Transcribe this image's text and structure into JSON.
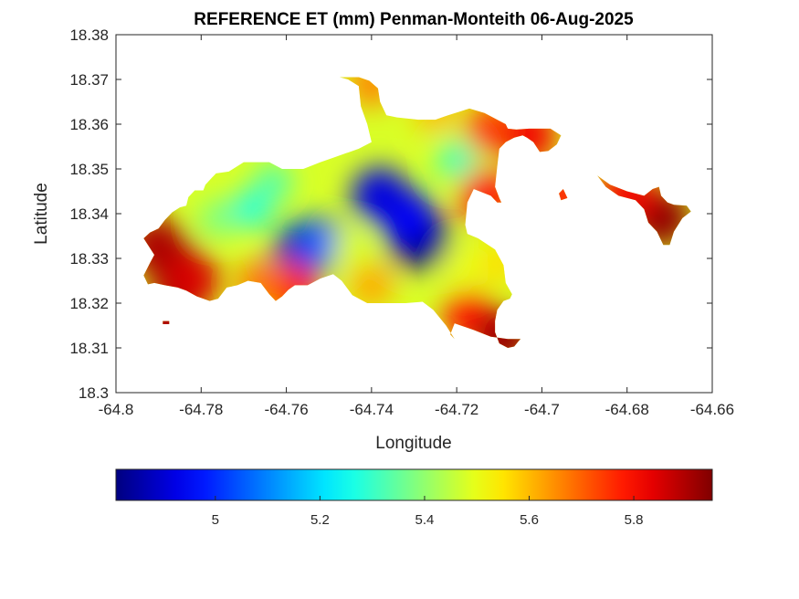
{
  "chart_data": {
    "type": "heatmap",
    "title": "REFERENCE ET (mm) Penman-Monteith 06-Aug-2025",
    "xlabel": "Longitude",
    "ylabel": "Latitude",
    "xlim": [
      -64.8,
      -64.66
    ],
    "ylim": [
      18.3,
      18.38
    ],
    "x_ticks": [
      -64.8,
      -64.78,
      -64.76,
      -64.74,
      -64.72,
      -64.7,
      -64.68,
      -64.66
    ],
    "x_tick_labels": [
      "-64.8",
      "-64.78",
      "-64.76",
      "-64.74",
      "-64.72",
      "-64.7",
      "-64.68",
      "-64.66"
    ],
    "y_ticks": [
      18.3,
      18.31,
      18.32,
      18.33,
      18.34,
      18.35,
      18.36,
      18.37,
      18.38
    ],
    "y_tick_labels": [
      "18.3",
      "18.31",
      "18.32",
      "18.33",
      "18.34",
      "18.35",
      "18.36",
      "18.37",
      "18.38"
    ],
    "grid": false,
    "colormap": "jet",
    "colorbar": {
      "orientation": "horizontal",
      "placement": "bottom",
      "range": [
        4.81,
        5.95
      ],
      "ticks": [
        5.0,
        5.2,
        5.4,
        5.6,
        5.8
      ],
      "tick_labels": [
        "5",
        "5.2",
        "5.4",
        "5.6",
        "5.8"
      ]
    },
    "outline": [
      [
        -64.7935,
        18.3345
      ],
      [
        -64.792,
        18.3358
      ],
      [
        -64.79,
        18.3367
      ],
      [
        -64.7885,
        18.3386
      ],
      [
        -64.7868,
        18.3403
      ],
      [
        -64.785,
        18.3414
      ],
      [
        -64.7835,
        18.3418
      ],
      [
        -64.783,
        18.3437
      ],
      [
        -64.7815,
        18.3452
      ],
      [
        -64.7795,
        18.3452
      ],
      [
        -64.779,
        18.3465
      ],
      [
        -64.7775,
        18.348
      ],
      [
        -64.7765,
        18.349
      ],
      [
        -64.7735,
        18.3494
      ],
      [
        -64.77,
        18.3515
      ],
      [
        -64.767,
        18.3515
      ],
      [
        -64.764,
        18.3515
      ],
      [
        -64.761,
        18.35
      ],
      [
        -64.756,
        18.35
      ],
      [
        -64.752,
        18.3515
      ],
      [
        -64.749,
        18.3525
      ],
      [
        -64.746,
        18.3535
      ],
      [
        -64.743,
        18.3545
      ],
      [
        -64.74,
        18.356
      ],
      [
        -64.741,
        18.36
      ],
      [
        -64.7425,
        18.364
      ],
      [
        -64.743,
        18.3685
      ],
      [
        -64.7455,
        18.37
      ],
      [
        -64.7475,
        18.3705
      ],
      [
        -64.743,
        18.3705
      ],
      [
        -64.7405,
        18.3697
      ],
      [
        -64.7385,
        18.368
      ],
      [
        -64.738,
        18.365
      ],
      [
        -64.7365,
        18.362
      ],
      [
        -64.734,
        18.3615
      ],
      [
        -64.729,
        18.361
      ],
      [
        -64.725,
        18.361
      ],
      [
        -64.722,
        18.362
      ],
      [
        -64.717,
        18.3635
      ],
      [
        -64.7135,
        18.3625
      ],
      [
        -64.7105,
        18.361
      ],
      [
        -64.7085,
        18.36
      ],
      [
        -64.708,
        18.359
      ],
      [
        -64.706,
        18.3588
      ],
      [
        -64.703,
        18.359
      ],
      [
        -64.701,
        18.359
      ],
      [
        -64.698,
        18.359
      ],
      [
        -64.6955,
        18.3575
      ],
      [
        -64.6965,
        18.3555
      ],
      [
        -64.6985,
        18.354
      ],
      [
        -64.7005,
        18.3538
      ],
      [
        -64.702,
        18.356
      ],
      [
        -64.7035,
        18.357
      ],
      [
        -64.7045,
        18.3575
      ],
      [
        -64.7065,
        18.357
      ],
      [
        -64.7085,
        18.356
      ],
      [
        -64.71,
        18.3545
      ],
      [
        -64.7105,
        18.3505
      ],
      [
        -64.711,
        18.346
      ],
      [
        -64.71,
        18.3435
      ],
      [
        -64.7095,
        18.3425
      ],
      [
        -64.7105,
        18.3425
      ],
      [
        -64.712,
        18.344
      ],
      [
        -64.716,
        18.3455
      ],
      [
        -64.7175,
        18.3425
      ],
      [
        -64.718,
        18.3375
      ],
      [
        -64.7175,
        18.3355
      ],
      [
        -64.715,
        18.3345
      ],
      [
        -64.711,
        18.332
      ],
      [
        -64.709,
        18.3285
      ],
      [
        -64.7085,
        18.3245
      ],
      [
        -64.707,
        18.322
      ],
      [
        -64.7075,
        18.321
      ],
      [
        -64.709,
        18.3205
      ],
      [
        -64.7105,
        18.3185
      ],
      [
        -64.711,
        18.316
      ],
      [
        -64.711,
        18.3135
      ],
      [
        -64.71,
        18.311
      ],
      [
        -64.708,
        18.31
      ],
      [
        -64.7065,
        18.3103
      ],
      [
        -64.7055,
        18.3115
      ],
      [
        -64.705,
        18.312
      ],
      [
        -64.708,
        18.312
      ],
      [
        -64.712,
        18.3125
      ],
      [
        -64.716,
        18.314
      ],
      [
        -64.7205,
        18.3155
      ],
      [
        -64.7215,
        18.313
      ],
      [
        -64.7205,
        18.312
      ],
      [
        -64.7225,
        18.315
      ],
      [
        -64.7255,
        18.3185
      ],
      [
        -64.728,
        18.3203
      ],
      [
        -64.732,
        18.32
      ],
      [
        -64.7375,
        18.32
      ],
      [
        -64.741,
        18.32
      ],
      [
        -64.7445,
        18.3218
      ],
      [
        -64.747,
        18.325
      ],
      [
        -64.749,
        18.3265
      ],
      [
        -64.752,
        18.3255
      ],
      [
        -64.755,
        18.324
      ],
      [
        -64.758,
        18.324
      ],
      [
        -64.7595,
        18.323
      ],
      [
        -64.761,
        18.3215
      ],
      [
        -64.7625,
        18.3205
      ],
      [
        -64.764,
        18.322
      ],
      [
        -64.766,
        18.3245
      ],
      [
        -64.769,
        18.325
      ],
      [
        -64.7715,
        18.324
      ],
      [
        -64.774,
        18.3235
      ],
      [
        -64.776,
        18.321
      ],
      [
        -64.778,
        18.3205
      ],
      [
        -64.781,
        18.3215
      ],
      [
        -64.7835,
        18.3228
      ],
      [
        -64.7855,
        18.3235
      ],
      [
        -64.7885,
        18.324
      ],
      [
        -64.791,
        18.3245
      ],
      [
        -64.7925,
        18.3242
      ],
      [
        -64.7935,
        18.3262
      ],
      [
        -64.792,
        18.329
      ],
      [
        -64.791,
        18.3308
      ],
      [
        -64.7925,
        18.333
      ]
    ],
    "islands": [
      [
        [
          -64.695,
          18.3455
        ],
        [
          -64.694,
          18.3435
        ],
        [
          -64.6955,
          18.343
        ],
        [
          -64.696,
          18.3445
        ]
      ],
      [
        [
          -64.687,
          18.3485
        ],
        [
          -64.684,
          18.3465
        ],
        [
          -64.68,
          18.345
        ],
        [
          -64.676,
          18.344
        ],
        [
          -64.674,
          18.3455
        ],
        [
          -64.6725,
          18.346
        ],
        [
          -64.672,
          18.344
        ],
        [
          -64.6705,
          18.3425
        ],
        [
          -64.669,
          18.342
        ],
        [
          -64.666,
          18.3418
        ],
        [
          -64.665,
          18.3405
        ],
        [
          -64.667,
          18.339
        ],
        [
          -64.669,
          18.336
        ],
        [
          -64.67,
          18.333
        ],
        [
          -64.6715,
          18.333
        ],
        [
          -64.673,
          18.336
        ],
        [
          -64.675,
          18.338
        ],
        [
          -64.676,
          18.341
        ],
        [
          -64.678,
          18.343
        ],
        [
          -64.682,
          18.344
        ],
        [
          -64.685,
          18.346
        ]
      ],
      [
        [
          -64.789,
          18.316
        ],
        [
          -64.7875,
          18.316
        ],
        [
          -64.7875,
          18.3153
        ],
        [
          -64.789,
          18.3153
        ]
      ]
    ],
    "field_blobs": [
      {
        "lon": -64.729,
        "lat": 18.3345,
        "value": 4.81
      },
      {
        "lon": -64.732,
        "lat": 18.3395,
        "value": 4.95
      },
      {
        "lon": -64.738,
        "lat": 18.344,
        "value": 4.92
      },
      {
        "lon": -64.756,
        "lat": 18.3318,
        "value": 4.88
      },
      {
        "lon": -64.752,
        "lat": 18.3335,
        "value": 5.05
      },
      {
        "lon": -64.72,
        "lat": 18.352,
        "value": 5.3
      },
      {
        "lon": -64.768,
        "lat": 18.341,
        "value": 5.27
      },
      {
        "lon": -64.763,
        "lat": 18.347,
        "value": 5.32
      },
      {
        "lon": -64.776,
        "lat": 18.339,
        "value": 5.36
      },
      {
        "lon": -64.745,
        "lat": 18.332,
        "value": 5.48
      },
      {
        "lon": -64.718,
        "lat": 18.328,
        "value": 5.5
      },
      {
        "lon": -64.71,
        "lat": 18.329,
        "value": 5.56
      },
      {
        "lon": -64.74,
        "lat": 18.324,
        "value": 5.62
      },
      {
        "lon": -64.725,
        "lat": 18.363,
        "value": 5.6
      },
      {
        "lon": -64.74,
        "lat": 18.369,
        "value": 5.66
      },
      {
        "lon": -64.712,
        "lat": 18.359,
        "value": 5.74
      },
      {
        "lon": -64.703,
        "lat": 18.3575,
        "value": 5.82
      },
      {
        "lon": -64.713,
        "lat": 18.344,
        "value": 5.8
      },
      {
        "lon": -64.717,
        "lat": 18.317,
        "value": 5.78
      },
      {
        "lon": -64.709,
        "lat": 18.312,
        "value": 5.92
      },
      {
        "lon": -64.759,
        "lat": 18.323,
        "value": 5.8
      },
      {
        "lon": -64.766,
        "lat": 18.3245,
        "value": 5.68
      },
      {
        "lon": -64.786,
        "lat": 18.328,
        "value": 5.92
      },
      {
        "lon": -64.7905,
        "lat": 18.333,
        "value": 5.9
      },
      {
        "lon": -64.782,
        "lat": 18.325,
        "value": 5.85
      },
      {
        "lon": -64.672,
        "lat": 18.339,
        "value": 5.93
      },
      {
        "lon": -64.68,
        "lat": 18.3445,
        "value": 5.82
      },
      {
        "lon": -64.695,
        "lat": 18.344,
        "value": 5.78
      },
      {
        "lon": -64.788,
        "lat": 18.3156,
        "value": 5.9
      }
    ],
    "background_value": 5.48
  }
}
